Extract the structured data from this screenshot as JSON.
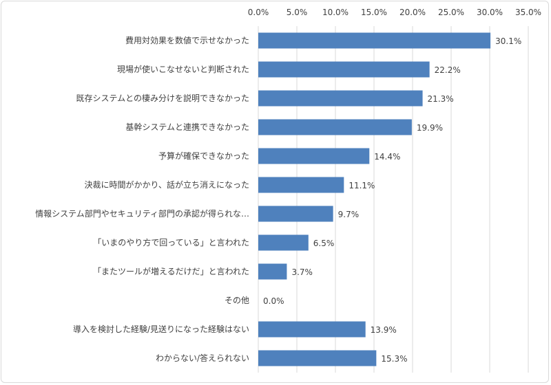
{
  "chart_data": {
    "type": "bar",
    "orientation": "horizontal",
    "categories": [
      "費用対効果を数値で示せなかった",
      "現場が使いこなせないと判断された",
      "既存システムとの棲み分けを説明できなかった",
      "基幹システムと連携できなかった",
      "予算が確保できなかった",
      "決裁に時間がかかり、話が立ち消えになった",
      "情報システム部門やセキュリティ部門の承認が得られな…",
      "「いまのやり方で回っている」と言われた",
      "「またツールが増えるだけだ」と言われた",
      "その他",
      "導入を検討した経験/見送りになった経験はない",
      "わからない/答えられない"
    ],
    "values": [
      30.1,
      22.2,
      21.3,
      19.9,
      14.4,
      11.1,
      9.7,
      6.5,
      3.7,
      0.0,
      13.9,
      15.3
    ],
    "value_labels": [
      "30.1%",
      "22.2%",
      "21.3%",
      "19.9%",
      "14.4%",
      "11.1%",
      "9.7%",
      "6.5%",
      "3.7%",
      "0.0%",
      "13.9%",
      "15.3%"
    ],
    "xlim": [
      0,
      35
    ],
    "x_ticks": [
      "0.0%",
      "5.0%",
      "10.0%",
      "15.0%",
      "20.0%",
      "25.0%",
      "30.0%",
      "35.0%"
    ],
    "x_axis_position": "top",
    "grid": true,
    "bar_color": "#4f81bd",
    "grid_color": "#d9d9d9",
    "title": "",
    "xlabel": "",
    "ylabel": ""
  }
}
